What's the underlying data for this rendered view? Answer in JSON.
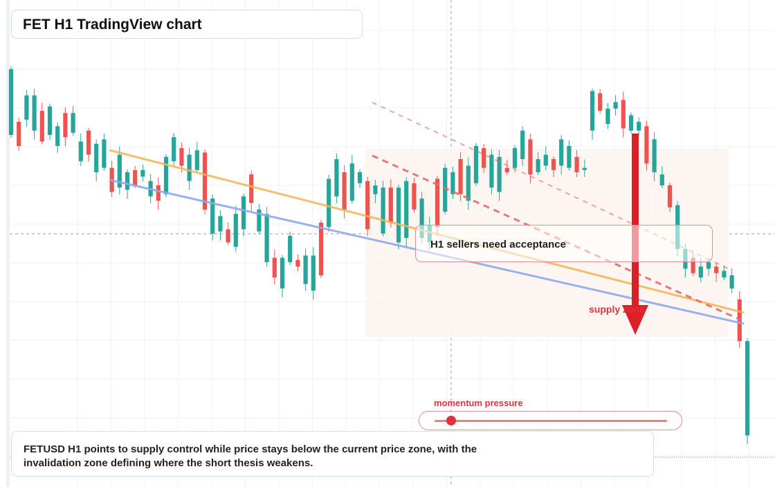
{
  "title": "FET H1 TradingView chart",
  "callout_text": "H1 sellers need acceptance",
  "zone_label": "supply zone",
  "momentum": {
    "label": "momentum pressure",
    "level": 0.07
  },
  "summary": {
    "line1": "FETUSD H1 points to supply control while price stays below the current price zone, with the",
    "line2": "invalidation zone defining where the short thesis weakens."
  },
  "colors": {
    "bull": "#26a69a",
    "bear": "#ef5350",
    "trendline_orange": "#f6b352",
    "trendline_blue": "#8fa9ee",
    "resistance_dashed": "#e96a6e",
    "arrow": "#dc2027",
    "zone_fill": "#fdf3ee",
    "accent": "#e0323c"
  },
  "chart_data": {
    "type": "candlestick",
    "symbol": "FETUSD",
    "timeframe": "H1",
    "ylim": [
      0,
      100
    ],
    "xlim": [
      0,
      100
    ],
    "grid": true,
    "axis_labels_visible": false,
    "candles": [
      [
        0,
        70,
        100
      ],
      [
        1,
        65,
        76
      ],
      [
        2,
        77,
        88
      ],
      [
        3,
        72,
        88
      ],
      [
        4,
        67,
        81
      ],
      [
        5,
        70,
        83
      ],
      [
        6,
        65,
        74
      ],
      [
        7,
        69,
        80
      ],
      [
        8,
        71,
        80
      ],
      [
        9,
        58,
        67
      ],
      [
        10,
        61,
        72
      ],
      [
        11,
        53,
        66
      ],
      [
        12,
        55,
        68
      ],
      [
        13,
        44,
        55
      ],
      [
        14,
        46,
        61
      ],
      [
        15,
        45,
        53
      ],
      [
        16,
        47,
        54
      ],
      [
        17,
        51,
        54
      ],
      [
        18,
        42,
        49
      ],
      [
        19,
        40,
        47
      ],
      [
        20,
        43,
        60
      ],
      [
        21,
        58,
        69
      ],
      [
        22,
        56,
        64
      ],
      [
        23,
        49,
        61
      ],
      [
        24,
        54,
        63
      ],
      [
        25,
        36,
        62
      ],
      [
        26,
        25,
        41
      ],
      [
        27,
        26,
        33
      ],
      [
        28,
        21,
        27
      ],
      [
        29,
        19,
        34
      ],
      [
        30,
        27,
        42
      ],
      [
        31,
        39,
        52
      ],
      [
        32,
        26,
        36
      ],
      [
        33,
        12,
        34
      ],
      [
        34,
        5,
        14
      ],
      [
        35,
        0,
        14
      ],
      [
        36,
        12,
        24
      ],
      [
        37,
        10,
        13
      ],
      [
        38,
        2,
        15
      ],
      [
        39,
        -1,
        15
      ],
      [
        40,
        6,
        30
      ],
      [
        41,
        28,
        50
      ],
      [
        42,
        42,
        59
      ],
      [
        43,
        36,
        53
      ],
      [
        44,
        40,
        57
      ],
      [
        45,
        48,
        53
      ],
      [
        46,
        27,
        49
      ],
      [
        47,
        43,
        47
      ],
      [
        48,
        25,
        46
      ],
      [
        49,
        30,
        46
      ],
      [
        50,
        21,
        46
      ],
      [
        51,
        23,
        49
      ],
      [
        52,
        36,
        48
      ],
      [
        53,
        23,
        41
      ],
      [
        54,
        21,
        29
      ],
      [
        55,
        28,
        50
      ],
      [
        56,
        35,
        55
      ],
      [
        57,
        43,
        53
      ],
      [
        58,
        43,
        59
      ],
      [
        59,
        40,
        56
      ],
      [
        60,
        48,
        65
      ],
      [
        61,
        55,
        64
      ],
      [
        62,
        46,
        61
      ],
      [
        63,
        44,
        60
      ],
      [
        64,
        53,
        55
      ],
      [
        65,
        55,
        64
      ],
      [
        66,
        59,
        72
      ],
      [
        67,
        52,
        68
      ],
      [
        68,
        53,
        59
      ],
      [
        69,
        56,
        61
      ],
      [
        70,
        54,
        59
      ],
      [
        71,
        56,
        68
      ],
      [
        72,
        55,
        65
      ],
      [
        73,
        53,
        60
      ],
      [
        74,
        54,
        55
      ],
      [
        75,
        72,
        90
      ],
      [
        76,
        81,
        89
      ],
      [
        77,
        75,
        82
      ],
      [
        78,
        82,
        85
      ],
      [
        79,
        73,
        86
      ],
      [
        80,
        72,
        79
      ],
      [
        81,
        72,
        76
      ],
      [
        82,
        57,
        74
      ],
      [
        83,
        53,
        68
      ],
      [
        84,
        47,
        52
      ],
      [
        85,
        37,
        47
      ],
      [
        86,
        18,
        38
      ],
      [
        87,
        9,
        18
      ],
      [
        88,
        7,
        14
      ],
      [
        89,
        5,
        10
      ],
      [
        90,
        9,
        12
      ],
      [
        91,
        7,
        10
      ],
      [
        92,
        5,
        8
      ],
      [
        93,
        0,
        6
      ],
      [
        94,
        -24,
        -5
      ],
      [
        95,
        -67,
        -24
      ]
    ],
    "annotations": [
      {
        "type": "trendline",
        "color": "orange"
      },
      {
        "type": "trendline",
        "color": "blue"
      },
      {
        "type": "trendline",
        "style": "dashed",
        "color": "red"
      },
      {
        "type": "arrow",
        "direction": "down"
      },
      {
        "type": "zone",
        "label": "supply zone"
      }
    ]
  }
}
